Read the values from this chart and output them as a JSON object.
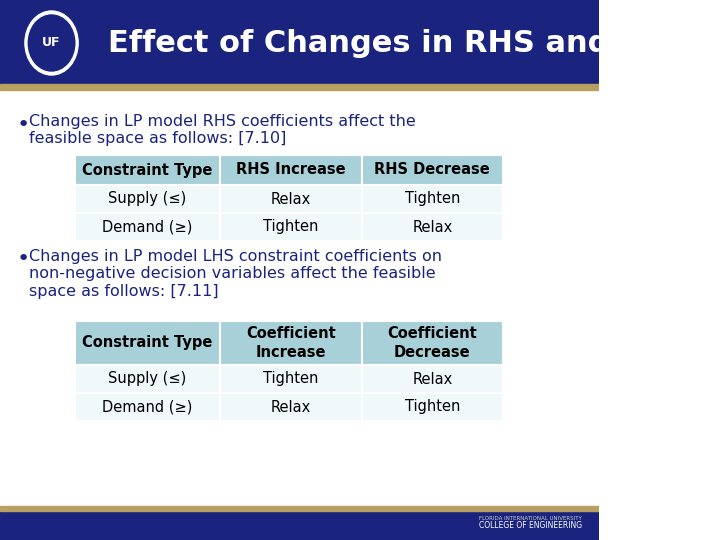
{
  "title": "Effect of Changes in RHS and LHS",
  "title_bg": "#1a237e",
  "title_color": "#ffffff",
  "body_bg": "#ffffff",
  "bottom_bar_color": "#1a237e",
  "accent_color": "#b8a060",
  "bullet1": "Changes in LP model RHS coefficients affect the\nfeasible space as follows: [7.10]",
  "bullet2": "Changes in LP model LHS constraint coefficients on\nnon-negative decision variables affect the feasible\nspace as follows: [7.11]",
  "table1_header": [
    "Constraint Type",
    "RHS Increase",
    "RHS Decrease"
  ],
  "table1_rows": [
    [
      "Supply (≤)",
      "Relax",
      "Tighten"
    ],
    [
      "Demand (≥)",
      "Tighten",
      "Relax"
    ]
  ],
  "table2_header": [
    "Constraint Type",
    "Coefficient\nIncrease",
    "Coefficient\nDecrease"
  ],
  "table2_rows": [
    [
      "Supply (≤)",
      "Tighten",
      "Relax"
    ],
    [
      "Demand (≥)",
      "Relax",
      "Tighten"
    ]
  ],
  "header_bg": "#a8d0d8",
  "row_bg": "#ffffff",
  "table_text_color": "#000000",
  "bullet_text_color": "#1a237e"
}
